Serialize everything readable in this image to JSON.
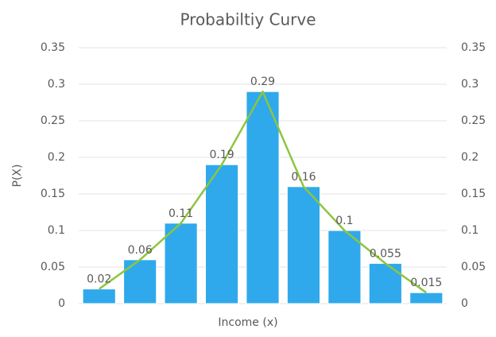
{
  "chart_data": {
    "type": "bar",
    "title": "Probabiltiy Curve",
    "x_label": "Income (x)",
    "y_label": "P(X)",
    "categories": [
      null,
      null,
      null,
      null,
      null,
      null,
      null,
      null,
      null
    ],
    "series": [
      {
        "type": "bar",
        "color": "#2fa9eb",
        "values": [
          0.02,
          0.06,
          0.11,
          0.19,
          0.29,
          0.16,
          0.1,
          0.055,
          0.015
        ]
      },
      {
        "type": "line",
        "axis": "y2",
        "color": "#8cc63f",
        "values": [
          0.02,
          0.06,
          0.11,
          0.19,
          0.29,
          0.16,
          0.1,
          0.055,
          0.015
        ]
      }
    ],
    "ylim": [
      0,
      0.35
    ],
    "yticks": [
      0,
      0.05,
      0.1,
      0.15,
      0.2,
      0.25,
      0.3,
      0.35
    ],
    "y2lim": [
      0,
      0.35
    ],
    "y2ticks": [
      0,
      0.05,
      0.1,
      0.15,
      0.2,
      0.25,
      0.3,
      0.35
    ],
    "grid": true,
    "data_labels": true
  }
}
